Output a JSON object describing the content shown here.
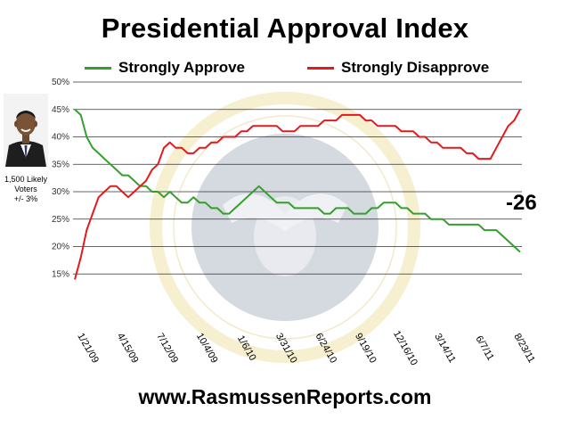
{
  "header": {
    "title": "Presidential Approval Index"
  },
  "legend": {
    "approve_label": "Strongly Approve",
    "disapprove_label": "Strongly Disapprove"
  },
  "sidebar": {
    "sample_line1": "1,500 Likely",
    "sample_line2": "Voters",
    "sample_line3": "+/- 3%"
  },
  "annotation": {
    "spread": "-26"
  },
  "footer": {
    "website": "www.RasmussenReports.com"
  },
  "colors": {
    "approve": "#33a02c",
    "disapprove": "#e31a1c"
  },
  "chart_data": {
    "type": "line",
    "title": "Presidential Approval Index",
    "xlabel": "",
    "ylabel": "",
    "ylim": [
      10,
      50
    ],
    "y_ticks": [
      "15%",
      "20%",
      "25%",
      "30%",
      "35%",
      "40%",
      "45%",
      "50%"
    ],
    "x_ticks": [
      "1/21/09",
      "4/15/09",
      "7/12/09",
      "10/4/09",
      "1/6/10",
      "3/31/10",
      "6/24/10",
      "9/19/10",
      "12/16/10",
      "3/14/11",
      "6/7/11",
      "8/23/11"
    ],
    "grid": true,
    "legend_position": "top",
    "series": [
      {
        "name": "Strongly Approve",
        "color": "#33a02c",
        "values": [
          45,
          44,
          40,
          38,
          37,
          36,
          35,
          34,
          33,
          33,
          32,
          31,
          31,
          30,
          30,
          29,
          30,
          29,
          28,
          28,
          29,
          28,
          28,
          27,
          27,
          26,
          26,
          27,
          28,
          29,
          30,
          31,
          30,
          29,
          28,
          28,
          28,
          27,
          27,
          27,
          27,
          27,
          26,
          26,
          27,
          27,
          27,
          26,
          26,
          26,
          27,
          27,
          28,
          28,
          28,
          27,
          27,
          26,
          26,
          26,
          25,
          25,
          25,
          24,
          24,
          24,
          24,
          24,
          24,
          23,
          23,
          23,
          22,
          21,
          20,
          19
        ]
      },
      {
        "name": "Strongly Disapprove",
        "color": "#e31a1c",
        "values": [
          14,
          18,
          23,
          26,
          29,
          30,
          31,
          31,
          30,
          29,
          30,
          31,
          32,
          34,
          35,
          38,
          39,
          38,
          38,
          37,
          37,
          38,
          38,
          39,
          39,
          40,
          40,
          40,
          41,
          41,
          42,
          42,
          42,
          42,
          42,
          41,
          41,
          41,
          42,
          42,
          42,
          42,
          43,
          43,
          43,
          44,
          44,
          44,
          44,
          43,
          43,
          42,
          42,
          42,
          42,
          41,
          41,
          41,
          40,
          40,
          39,
          39,
          38,
          38,
          38,
          38,
          37,
          37,
          36,
          36,
          36,
          38,
          40,
          42,
          43,
          45
        ]
      }
    ]
  }
}
